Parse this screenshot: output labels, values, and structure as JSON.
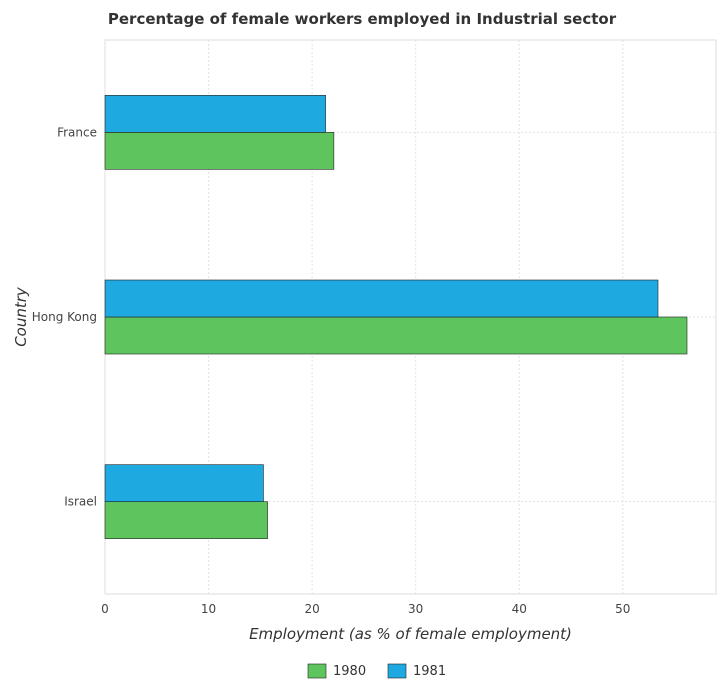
{
  "chart_data": {
    "type": "bar",
    "orientation": "horizontal",
    "title": "Percentage of female workers employed in Industrial sector",
    "xlabel": "Employment (as % of female employment)",
    "ylabel": "Country",
    "categories": [
      "France",
      "Hong Kong",
      "Israel"
    ],
    "series": [
      {
        "name": "1980",
        "color": "#5ec55e",
        "values": [
          22.1,
          56.2,
          15.7
        ]
      },
      {
        "name": "1981",
        "color": "#1fa9e1",
        "values": [
          21.3,
          53.4,
          15.3
        ]
      }
    ],
    "xlim": [
      0,
      59
    ],
    "xticks": [
      0,
      10,
      20,
      30,
      40,
      50
    ],
    "grid": true,
    "legend": "bottom-center"
  }
}
